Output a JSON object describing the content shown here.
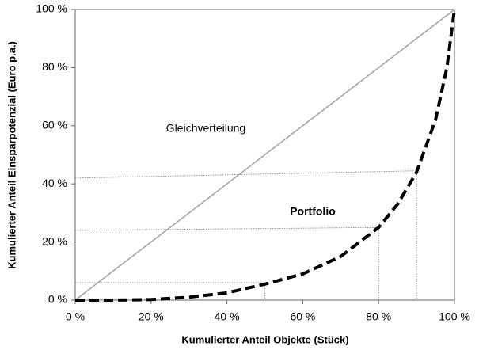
{
  "chart_data": {
    "type": "line",
    "xlabel": "Kumulierter Anteil Objekte (Stück)",
    "ylabel": "Kumulierter Anteil Einsparpotenzial (Euro p.a.)",
    "xlim": [
      0,
      100
    ],
    "ylim": [
      0,
      100
    ],
    "xticks": [
      {
        "value": 0,
        "label": "0 %"
      },
      {
        "value": 20,
        "label": "20 %"
      },
      {
        "value": 40,
        "label": "40 %"
      },
      {
        "value": 60,
        "label": "60 %"
      },
      {
        "value": 80,
        "label": "80 %"
      },
      {
        "value": 100,
        "label": "100 %"
      }
    ],
    "yticks": [
      {
        "value": 0,
        "label": "0 %"
      },
      {
        "value": 20,
        "label": "20 %"
      },
      {
        "value": 40,
        "label": "40 %"
      },
      {
        "value": 60,
        "label": "60 %"
      },
      {
        "value": 80,
        "label": "80 %"
      },
      {
        "value": 100,
        "label": "100 %"
      }
    ],
    "grid": false,
    "series": [
      {
        "name": "Gleichverteilung",
        "color": "#a0a0a0",
        "x": [
          0,
          100
        ],
        "values": [
          0,
          100
        ]
      },
      {
        "name": "Portfolio",
        "color": "#000000",
        "x": [
          0,
          10,
          20,
          30,
          40,
          50,
          60,
          70,
          80,
          85,
          90,
          95,
          98,
          100
        ],
        "values": [
          0,
          0,
          0.2,
          1,
          2.5,
          5.5,
          9,
          15,
          25,
          33,
          44,
          62,
          80,
          100
        ]
      }
    ],
    "reference_lines": [
      {
        "x": [
          0,
          50,
          50
        ],
        "y": [
          6,
          6,
          0
        ]
      },
      {
        "x": [
          0,
          80,
          80
        ],
        "y": [
          24,
          25,
          0
        ]
      },
      {
        "x": [
          0,
          90,
          90
        ],
        "y": [
          42,
          44.5,
          0
        ]
      }
    ]
  }
}
